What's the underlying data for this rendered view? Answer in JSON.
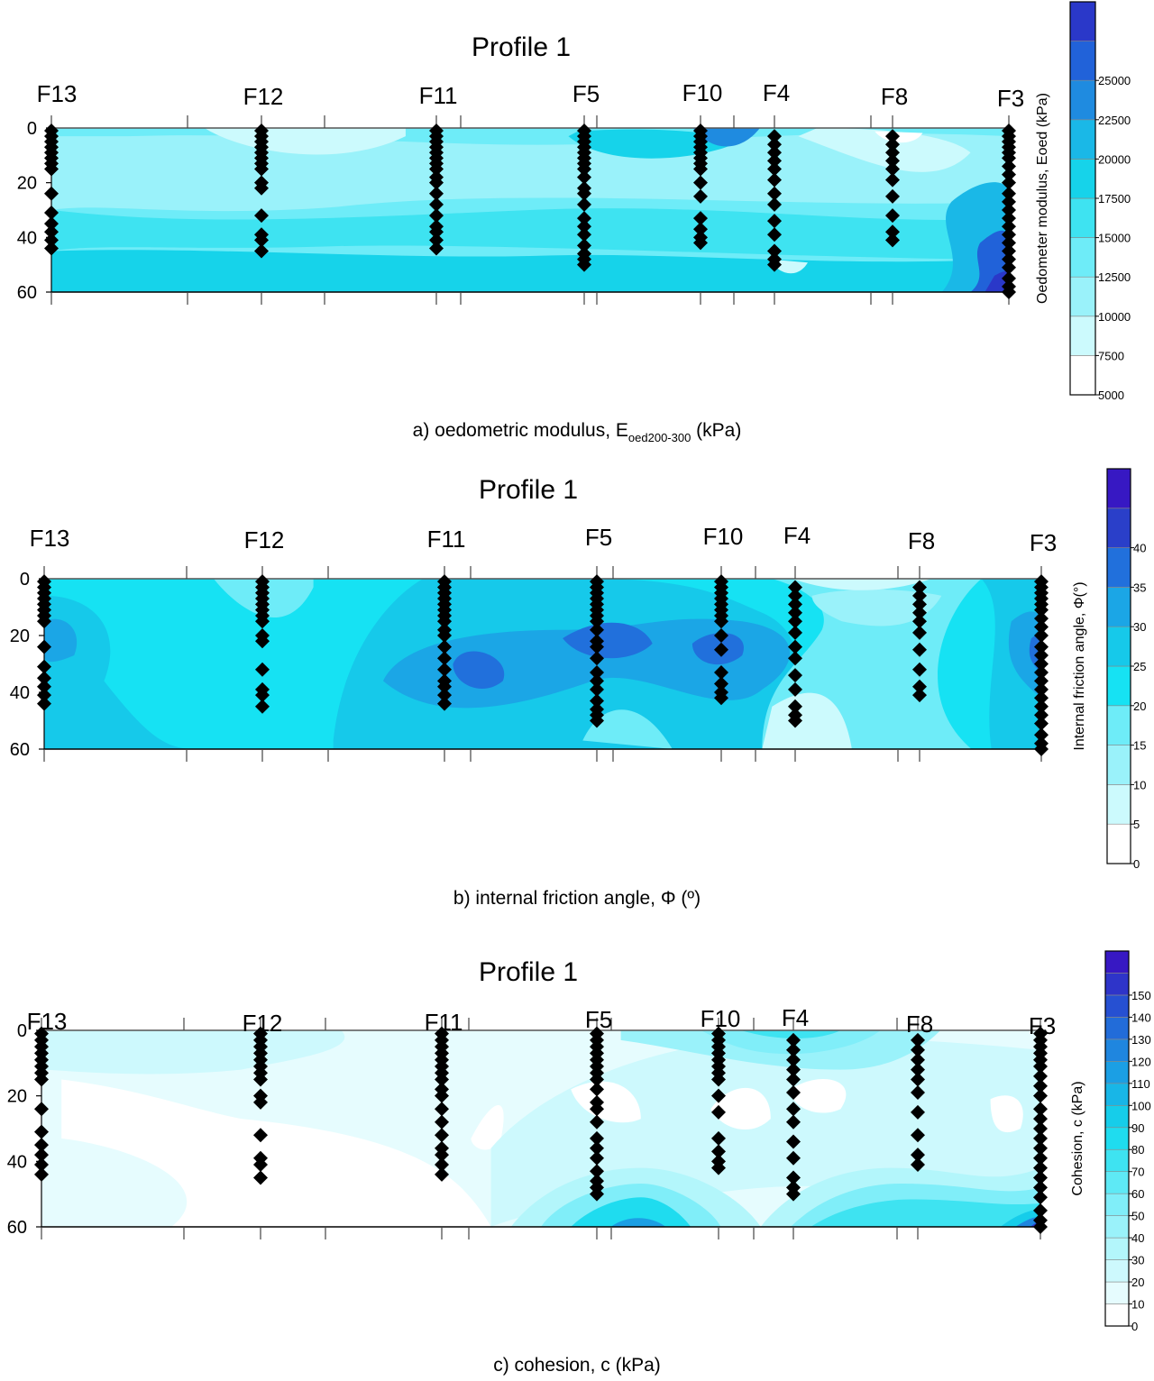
{
  "chart_data": [
    {
      "type": "contour",
      "title": "Profile 1",
      "caption_prefix": "a) oedometric modulus, E",
      "caption_sub": "oed200-300",
      "caption_suffix": " (kPa)",
      "boreholes": [
        "F13",
        "F12",
        "F11",
        "F5",
        "F10",
        "F4",
        "F8",
        "F3"
      ],
      "y_ticks": [
        "0",
        "20",
        "40",
        "60"
      ],
      "ylim": [
        0,
        60
      ],
      "colorbar_label": "Oedometer modulus, Eoed (kPa)",
      "colorbar_ticks": [
        "5000",
        "7500",
        "10000",
        "12500",
        "15000",
        "17500",
        "20000",
        "22500",
        "25000"
      ],
      "colors": [
        "#ffffff",
        "#ccfafd",
        "#9af2fa",
        "#6eecf8",
        "#3ee3f1",
        "#16d3ea",
        "#1ab8e7",
        "#1f8be0",
        "#2162d9",
        "#2a38c9",
        "#3718c3"
      ]
    },
    {
      "type": "contour",
      "title": "Profile 1",
      "caption_prefix": "b) internal friction angle, Φ (º)",
      "caption_sub": "",
      "caption_suffix": "",
      "boreholes": [
        "F13",
        "F12",
        "F11",
        "F5",
        "F10",
        "F4",
        "F8",
        "F3"
      ],
      "y_ticks": [
        "0",
        "20",
        "40",
        "60"
      ],
      "ylim": [
        0,
        60
      ],
      "colorbar_label": "Internal friction angle, Φ(°)",
      "colorbar_ticks": [
        "0",
        "5",
        "10",
        "15",
        "20",
        "25",
        "30",
        "35",
        "40"
      ],
      "colors": [
        "#ffffff",
        "#ccfafd",
        "#9af2fa",
        "#6eecf8",
        "#16e2f3",
        "#16c9ea",
        "#1ba6e6",
        "#2170dc",
        "#2a3fc9",
        "#3718c3"
      ]
    },
    {
      "type": "contour",
      "title": "Profile 1",
      "caption_prefix": "c) cohesion, c (kPa)",
      "caption_sub": "",
      "caption_suffix": "",
      "boreholes": [
        "F13",
        "F12",
        "F11",
        "F5",
        "F10",
        "F4",
        "F8",
        "F3"
      ],
      "y_ticks": [
        "0",
        "20",
        "40",
        "60"
      ],
      "ylim": [
        0,
        60
      ],
      "colorbar_label": "Cohesion, c (kPa)",
      "colorbar_ticks": [
        "0",
        "10",
        "20",
        "30",
        "40",
        "50",
        "60",
        "70",
        "80",
        "90",
        "100",
        "110",
        "120",
        "130",
        "140",
        "150"
      ],
      "colors": [
        "#ffffff",
        "#e6fcfe",
        "#cdf9fd",
        "#b3f6fb",
        "#9af2fa",
        "#80eef9",
        "#5ee9f5",
        "#3ee3f1",
        "#1fdcef",
        "#16cdea",
        "#18b6e7",
        "#1b9fe4",
        "#1f86df",
        "#226cd9",
        "#2650d2",
        "#2e34c9",
        "#3718c3"
      ]
    }
  ]
}
